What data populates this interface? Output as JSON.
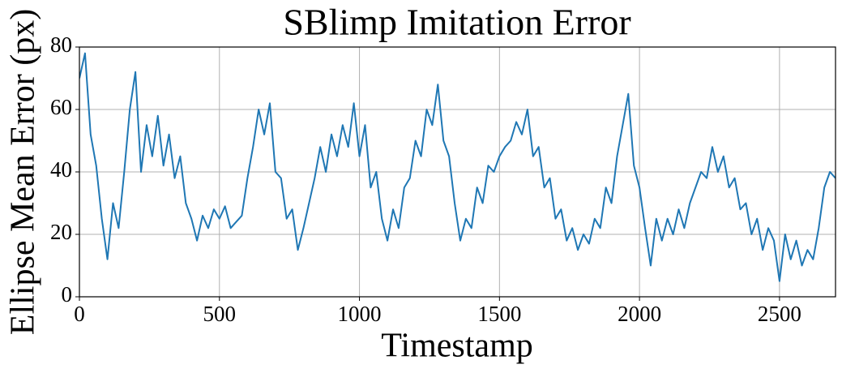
{
  "chart_data": {
    "type": "line",
    "title": "SBlimp Imitation Error",
    "xlabel": "Timestamp",
    "ylabel": "Ellipse Mean Error (px)",
    "color": "#1f77b4",
    "grid": true,
    "x": [
      0,
      20,
      40,
      60,
      80,
      100,
      120,
      140,
      160,
      180,
      200,
      220,
      240,
      260,
      280,
      300,
      320,
      340,
      360,
      380,
      400,
      420,
      440,
      460,
      480,
      500,
      520,
      540,
      560,
      580,
      600,
      620,
      640,
      660,
      680,
      700,
      720,
      740,
      760,
      780,
      800,
      820,
      840,
      860,
      880,
      900,
      920,
      940,
      960,
      980,
      1000,
      1020,
      1040,
      1060,
      1080,
      1100,
      1120,
      1140,
      1160,
      1180,
      1200,
      1220,
      1240,
      1260,
      1280,
      1300,
      1320,
      1340,
      1360,
      1380,
      1400,
      1420,
      1440,
      1460,
      1480,
      1500,
      1520,
      1540,
      1560,
      1580,
      1600,
      1620,
      1640,
      1660,
      1680,
      1700,
      1720,
      1740,
      1760,
      1780,
      1800,
      1820,
      1840,
      1860,
      1880,
      1900,
      1920,
      1940,
      1960,
      1980,
      2000,
      2020,
      2040,
      2060,
      2080,
      2100,
      2120,
      2140,
      2160,
      2180,
      2200,
      2220,
      2240,
      2260,
      2280,
      2300,
      2320,
      2340,
      2360,
      2380,
      2400,
      2420,
      2440,
      2460,
      2480,
      2500,
      2520,
      2540,
      2560,
      2580,
      2600,
      2620,
      2640,
      2660,
      2680,
      2700
    ],
    "values": [
      70,
      78,
      52,
      42,
      25,
      12,
      30,
      22,
      40,
      60,
      72,
      40,
      55,
      45,
      58,
      42,
      52,
      38,
      45,
      30,
      25,
      18,
      26,
      22,
      28,
      25,
      29,
      22,
      24,
      26,
      38,
      48,
      60,
      52,
      62,
      40,
      38,
      25,
      28,
      15,
      22,
      30,
      38,
      48,
      40,
      52,
      45,
      55,
      48,
      62,
      45,
      55,
      35,
      40,
      25,
      18,
      28,
      22,
      35,
      38,
      50,
      45,
      60,
      55,
      68,
      50,
      45,
      30,
      18,
      25,
      22,
      35,
      30,
      42,
      40,
      45,
      48,
      50,
      56,
      52,
      60,
      45,
      48,
      35,
      38,
      25,
      28,
      18,
      22,
      15,
      20,
      17,
      25,
      22,
      35,
      30,
      45,
      55,
      65,
      42,
      35,
      22,
      10,
      25,
      18,
      25,
      20,
      28,
      22,
      30,
      35,
      40,
      38,
      48,
      40,
      45,
      35,
      38,
      28,
      30,
      20,
      25,
      15,
      22,
      18,
      5,
      20,
      12,
      18,
      10,
      15,
      12,
      22,
      35,
      40,
      38
    ],
    "xlim": [
      0,
      2700
    ],
    "ylim": [
      0,
      80
    ],
    "xticks": [
      0,
      500,
      1000,
      1500,
      2000,
      2500
    ],
    "yticks": [
      0,
      20,
      40,
      60,
      80
    ]
  }
}
